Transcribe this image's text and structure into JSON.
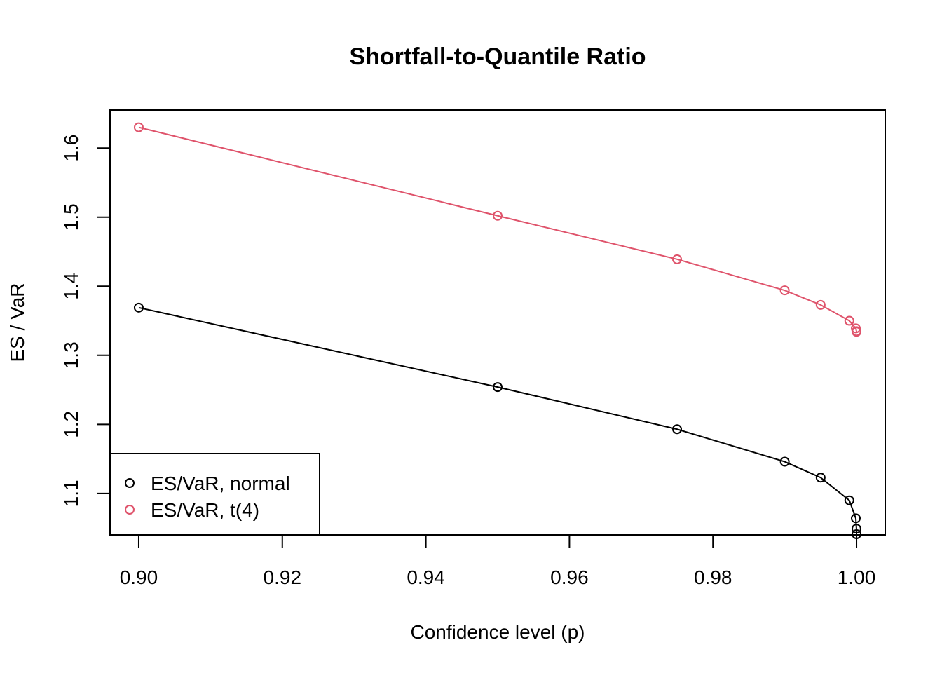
{
  "chart_data": {
    "type": "line",
    "title": "Shortfall-to-Quantile Ratio",
    "xlabel": "Confidence level (p)",
    "ylabel": "ES / VaR",
    "xlim": [
      0.896,
      1.004
    ],
    "ylim": [
      1.04,
      1.655
    ],
    "x_ticks": [
      0.9,
      0.92,
      0.94,
      0.96,
      0.98,
      1.0
    ],
    "x_tick_labels": [
      "0.90",
      "0.92",
      "0.94",
      "0.96",
      "0.98",
      "1.00"
    ],
    "y_ticks": [
      1.1,
      1.2,
      1.3,
      1.4,
      1.5,
      1.6
    ],
    "y_tick_labels": [
      "1.1",
      "1.2",
      "1.3",
      "1.4",
      "1.5",
      "1.6"
    ],
    "x": [
      0.9,
      0.95,
      0.975,
      0.99,
      0.995,
      0.999,
      0.9999,
      0.99999,
      0.999999
    ],
    "series": [
      {
        "name": "ES/VaR, normal",
        "color": "#000000",
        "values": [
          1.369,
          1.254,
          1.193,
          1.146,
          1.123,
          1.09,
          1.064,
          1.049,
          1.041
        ]
      },
      {
        "name": "ES/VaR, t(4)",
        "color": "#DF536B",
        "values": [
          1.63,
          1.502,
          1.439,
          1.394,
          1.373,
          1.35,
          1.339,
          1.335,
          1.334
        ]
      }
    ],
    "legend": {
      "position": "bottom-left",
      "entries": [
        "ES/VaR, normal",
        "ES/VaR, t(4)"
      ]
    },
    "grid": false,
    "markers": "open-circle"
  }
}
